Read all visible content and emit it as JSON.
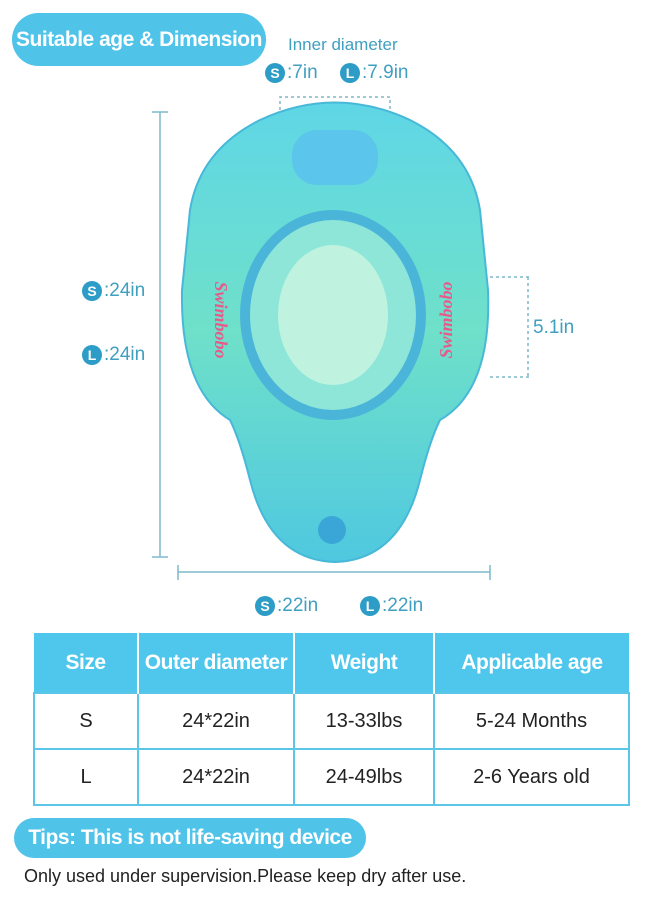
{
  "header": {
    "title": "Suitable age & Dimension"
  },
  "inner_diameter": {
    "label": "Inner diameter",
    "s_badge": "S",
    "s_value": ":7in",
    "l_badge": "L",
    "l_value": ":7.9in"
  },
  "height_dims": {
    "s_badge": "S",
    "s_value": ":24in",
    "l_badge": "L",
    "l_value": ":24in"
  },
  "seat_depth": {
    "value": "5.1in"
  },
  "width_dims": {
    "s_badge": "S",
    "s_value": ":22in",
    "l_badge": "L",
    "l_value": ":22in"
  },
  "product": {
    "brand": "Swimbobo"
  },
  "table": {
    "headers": [
      "Size",
      "Outer diameter",
      "Weight",
      "Applicable age"
    ],
    "rows": [
      [
        "S",
        "24*22in",
        "13-33lbs",
        "5-24 Months"
      ],
      [
        "L",
        "24*22in",
        "24-49lbs",
        "2-6 Years old"
      ]
    ]
  },
  "tips": {
    "title": "Tips: This is not life-saving device",
    "note": "Only used under supervision.Please keep dry after use."
  },
  "colors": {
    "accent": "#4fc3e8",
    "dimension_text": "#3f9fbf"
  }
}
